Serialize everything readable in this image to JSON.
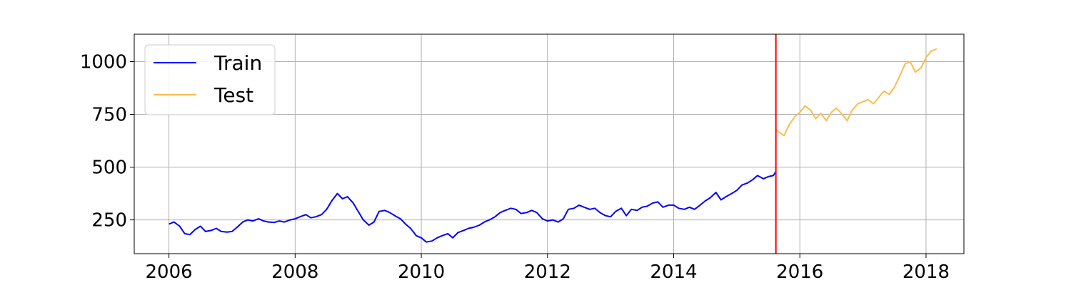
{
  "chart_data": {
    "type": "line",
    "title": "",
    "xlabel": "",
    "ylabel": "",
    "xlim": [
      2005.45,
      2018.6
    ],
    "ylim": [
      90,
      1130
    ],
    "x_ticks": [
      2006,
      2008,
      2010,
      2012,
      2014,
      2016,
      2018
    ],
    "y_ticks": [
      250,
      500,
      750,
      1000
    ],
    "grid": true,
    "legend": {
      "placement": "top-left",
      "entries": [
        "Train",
        "Test"
      ]
    },
    "split_marker": {
      "x": 2015.62,
      "color": "#ff0000"
    },
    "series": [
      {
        "name": "Train",
        "color": "#0000ff",
        "points": [
          [
            2006.0,
            230
          ],
          [
            2006.08,
            240
          ],
          [
            2006.17,
            220
          ],
          [
            2006.25,
            185
          ],
          [
            2006.33,
            180
          ],
          [
            2006.42,
            205
          ],
          [
            2006.5,
            220
          ],
          [
            2006.58,
            195
          ],
          [
            2006.67,
            200
          ],
          [
            2006.75,
            210
          ],
          [
            2006.83,
            195
          ],
          [
            2006.92,
            192
          ],
          [
            2007.0,
            195
          ],
          [
            2007.08,
            215
          ],
          [
            2007.17,
            240
          ],
          [
            2007.25,
            250
          ],
          [
            2007.33,
            245
          ],
          [
            2007.42,
            255
          ],
          [
            2007.5,
            245
          ],
          [
            2007.58,
            240
          ],
          [
            2007.67,
            238
          ],
          [
            2007.75,
            245
          ],
          [
            2007.83,
            240
          ],
          [
            2007.92,
            250
          ],
          [
            2008.0,
            255
          ],
          [
            2008.08,
            265
          ],
          [
            2008.17,
            275
          ],
          [
            2008.25,
            260
          ],
          [
            2008.33,
            265
          ],
          [
            2008.42,
            275
          ],
          [
            2008.5,
            300
          ],
          [
            2008.58,
            340
          ],
          [
            2008.67,
            375
          ],
          [
            2008.75,
            350
          ],
          [
            2008.83,
            360
          ],
          [
            2008.92,
            330
          ],
          [
            2009.0,
            290
          ],
          [
            2009.08,
            250
          ],
          [
            2009.17,
            225
          ],
          [
            2009.25,
            240
          ],
          [
            2009.33,
            290
          ],
          [
            2009.42,
            295
          ],
          [
            2009.5,
            285
          ],
          [
            2009.58,
            270
          ],
          [
            2009.67,
            255
          ],
          [
            2009.75,
            230
          ],
          [
            2009.83,
            210
          ],
          [
            2009.92,
            175
          ],
          [
            2010.0,
            165
          ],
          [
            2010.08,
            145
          ],
          [
            2010.17,
            150
          ],
          [
            2010.25,
            165
          ],
          [
            2010.33,
            175
          ],
          [
            2010.42,
            185
          ],
          [
            2010.5,
            165
          ],
          [
            2010.58,
            190
          ],
          [
            2010.67,
            200
          ],
          [
            2010.75,
            210
          ],
          [
            2010.83,
            215
          ],
          [
            2010.92,
            225
          ],
          [
            2011.0,
            240
          ],
          [
            2011.08,
            250
          ],
          [
            2011.17,
            265
          ],
          [
            2011.25,
            285
          ],
          [
            2011.33,
            295
          ],
          [
            2011.42,
            305
          ],
          [
            2011.5,
            300
          ],
          [
            2011.58,
            280
          ],
          [
            2011.67,
            285
          ],
          [
            2011.75,
            295
          ],
          [
            2011.83,
            285
          ],
          [
            2011.92,
            255
          ],
          [
            2012.0,
            245
          ],
          [
            2012.08,
            250
          ],
          [
            2012.17,
            240
          ],
          [
            2012.25,
            255
          ],
          [
            2012.33,
            300
          ],
          [
            2012.42,
            305
          ],
          [
            2012.5,
            320
          ],
          [
            2012.58,
            310
          ],
          [
            2012.67,
            300
          ],
          [
            2012.75,
            305
          ],
          [
            2012.83,
            285
          ],
          [
            2012.92,
            270
          ],
          [
            2013.0,
            265
          ],
          [
            2013.08,
            290
          ],
          [
            2013.17,
            305
          ],
          [
            2013.25,
            270
          ],
          [
            2013.33,
            300
          ],
          [
            2013.42,
            295
          ],
          [
            2013.5,
            310
          ],
          [
            2013.58,
            315
          ],
          [
            2013.67,
            330
          ],
          [
            2013.75,
            335
          ],
          [
            2013.83,
            310
          ],
          [
            2013.92,
            320
          ],
          [
            2014.0,
            320
          ],
          [
            2014.08,
            305
          ],
          [
            2014.17,
            300
          ],
          [
            2014.25,
            310
          ],
          [
            2014.33,
            300
          ],
          [
            2014.42,
            320
          ],
          [
            2014.5,
            340
          ],
          [
            2014.58,
            355
          ],
          [
            2014.67,
            380
          ],
          [
            2014.75,
            345
          ],
          [
            2014.83,
            360
          ],
          [
            2014.92,
            375
          ],
          [
            2015.0,
            390
          ],
          [
            2015.08,
            415
          ],
          [
            2015.17,
            425
          ],
          [
            2015.25,
            440
          ],
          [
            2015.33,
            460
          ],
          [
            2015.42,
            445
          ],
          [
            2015.5,
            455
          ],
          [
            2015.58,
            460
          ],
          [
            2015.62,
            480
          ]
        ]
      },
      {
        "name": "Test",
        "color": "#fbbc4e",
        "points": [
          [
            2015.62,
            680
          ],
          [
            2015.67,
            665
          ],
          [
            2015.75,
            650
          ],
          [
            2015.83,
            700
          ],
          [
            2015.92,
            740
          ],
          [
            2016.0,
            760
          ],
          [
            2016.08,
            790
          ],
          [
            2016.17,
            770
          ],
          [
            2016.25,
            730
          ],
          [
            2016.33,
            755
          ],
          [
            2016.42,
            720
          ],
          [
            2016.5,
            760
          ],
          [
            2016.58,
            780
          ],
          [
            2016.67,
            750
          ],
          [
            2016.75,
            720
          ],
          [
            2016.83,
            770
          ],
          [
            2016.92,
            800
          ],
          [
            2017.0,
            810
          ],
          [
            2017.08,
            820
          ],
          [
            2017.17,
            800
          ],
          [
            2017.25,
            830
          ],
          [
            2017.33,
            860
          ],
          [
            2017.42,
            845
          ],
          [
            2017.5,
            880
          ],
          [
            2017.58,
            930
          ],
          [
            2017.67,
            990
          ],
          [
            2017.75,
            1000
          ],
          [
            2017.83,
            950
          ],
          [
            2017.92,
            970
          ],
          [
            2018.0,
            1020
          ],
          [
            2018.08,
            1050
          ],
          [
            2018.17,
            1060
          ]
        ]
      }
    ]
  }
}
